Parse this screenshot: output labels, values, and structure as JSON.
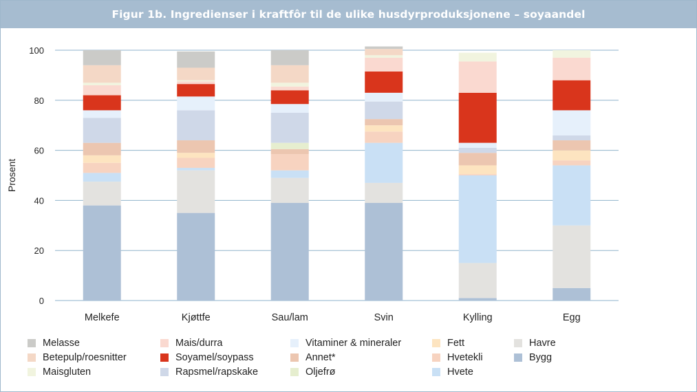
{
  "title": "Figur 1b. Ingredienser i kraftfôr til de ulike husdyrproduksjonene – soyaandel",
  "colors": {
    "Bygg": "#adc0d6",
    "Havre": "#e3e2df",
    "Hvete": "#c9e0f5",
    "Hvetekli": "#f7d3c0",
    "Fett": "#fde4c0",
    "Annet*": "#ecc6b0",
    "Oljefrø": "#e6eecf",
    "Rapsmel/rapskake": "#cfd8e8",
    "Vitaminer & mineraler": "#e6f0fb",
    "Soyamel/soypass": "#d9351c",
    "Mais/durra": "#fad9d0",
    "Maisgluten": "#f1f4df",
    "Betepulp/roesnitter": "#f4d8c6",
    "Melasse": "#cbcbc8"
  },
  "legend": {
    "items": [
      "Melasse",
      "Mais/durra",
      "Vitaminer & mineraler",
      "Fett",
      "Havre",
      "Betepulp/roesnitter",
      "Soyamel/soypass",
      "Annet*",
      "Hvetekli",
      "Bygg",
      "Maisgluten",
      "Rapsmel/rapskake",
      "Oljefrø",
      "Hvete"
    ]
  },
  "chart_data": {
    "type": "bar",
    "stacked": true,
    "ylabel": "Prosent",
    "ylim": [
      0,
      100
    ],
    "yticks": [
      0,
      20,
      40,
      60,
      80,
      100
    ],
    "grid": true,
    "legend_position": "bottom",
    "categories": [
      "Melkefe",
      "Kjøttfe",
      "Sau/lam",
      "Svin",
      "Kylling",
      "Egg"
    ],
    "series": [
      {
        "name": "Bygg",
        "values": [
          38,
          35,
          39,
          39,
          1,
          5
        ]
      },
      {
        "name": "Havre",
        "values": [
          9.5,
          17,
          10,
          8,
          14,
          25
        ]
      },
      {
        "name": "Hvete",
        "values": [
          3.5,
          1,
          3,
          16,
          35,
          24
        ]
      },
      {
        "name": "Hvetekli",
        "values": [
          4,
          4,
          6.5,
          4.5,
          0.5,
          2
        ]
      },
      {
        "name": "Fett",
        "values": [
          3,
          2,
          0,
          2.5,
          3.5,
          4
        ]
      },
      {
        "name": "Annet*",
        "values": [
          5,
          5,
          2,
          2.5,
          5,
          4
        ]
      },
      {
        "name": "Oljefrø",
        "values": [
          0,
          0,
          2.5,
          0,
          0,
          0
        ]
      },
      {
        "name": "Rapsmel/rapskake",
        "values": [
          10,
          12,
          12,
          7,
          2,
          2
        ]
      },
      {
        "name": "Vitaminer & mineraler",
        "values": [
          3,
          5.5,
          3.5,
          3.5,
          2,
          10
        ]
      },
      {
        "name": "Soyamel/soypass",
        "values": [
          6,
          5,
          5.5,
          8.5,
          20,
          12
        ]
      },
      {
        "name": "Mais/durra",
        "values": [
          4,
          1,
          1.5,
          5.5,
          12.5,
          9
        ]
      },
      {
        "name": "Maisgluten",
        "values": [
          1,
          0.5,
          1.5,
          1,
          3.5,
          3
        ]
      },
      {
        "name": "Betepulp/roesnitter",
        "values": [
          7,
          5,
          7,
          2.5,
          0,
          0
        ]
      },
      {
        "name": "Melasse",
        "values": [
          6,
          6.5,
          6,
          1,
          0,
          0
        ]
      }
    ]
  }
}
